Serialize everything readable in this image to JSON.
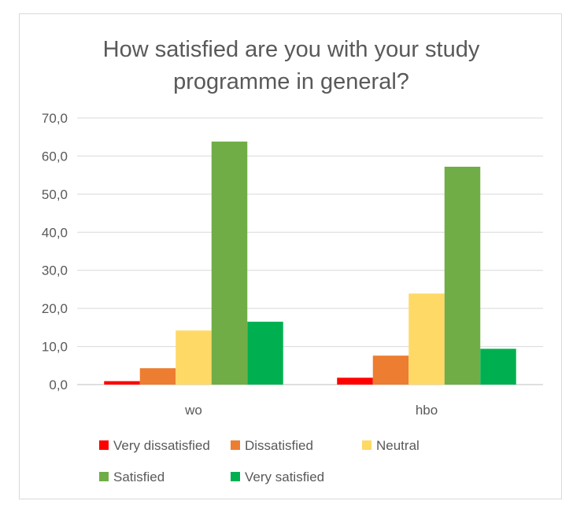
{
  "chart_data": {
    "type": "bar",
    "title": "How satisfied are you with your study programme in general?",
    "title_lines": [
      "How satisfied are you with your study",
      "programme in general?"
    ],
    "categories": [
      "wo",
      "hbo"
    ],
    "series": [
      {
        "name": "Very dissatisfied",
        "color": "#ff0000",
        "values": [
          0.9,
          1.8
        ]
      },
      {
        "name": "Dissatisfied",
        "color": "#ed7d31",
        "values": [
          4.3,
          7.6
        ]
      },
      {
        "name": "Neutral",
        "color": "#ffd966",
        "values": [
          14.2,
          23.9
        ]
      },
      {
        "name": "Satisfied",
        "color": "#70ad47",
        "values": [
          63.8,
          57.2
        ]
      },
      {
        "name": "Very satisfied",
        "color": "#00b050",
        "values": [
          16.5,
          9.4
        ]
      }
    ],
    "ylim": [
      0,
      70
    ],
    "yticks": [
      "0,0",
      "10,0",
      "20,0",
      "30,0",
      "40,0",
      "50,0",
      "60,0",
      "70,0"
    ],
    "grid": true,
    "legend": "bottom",
    "xlabel": "",
    "ylabel": ""
  }
}
